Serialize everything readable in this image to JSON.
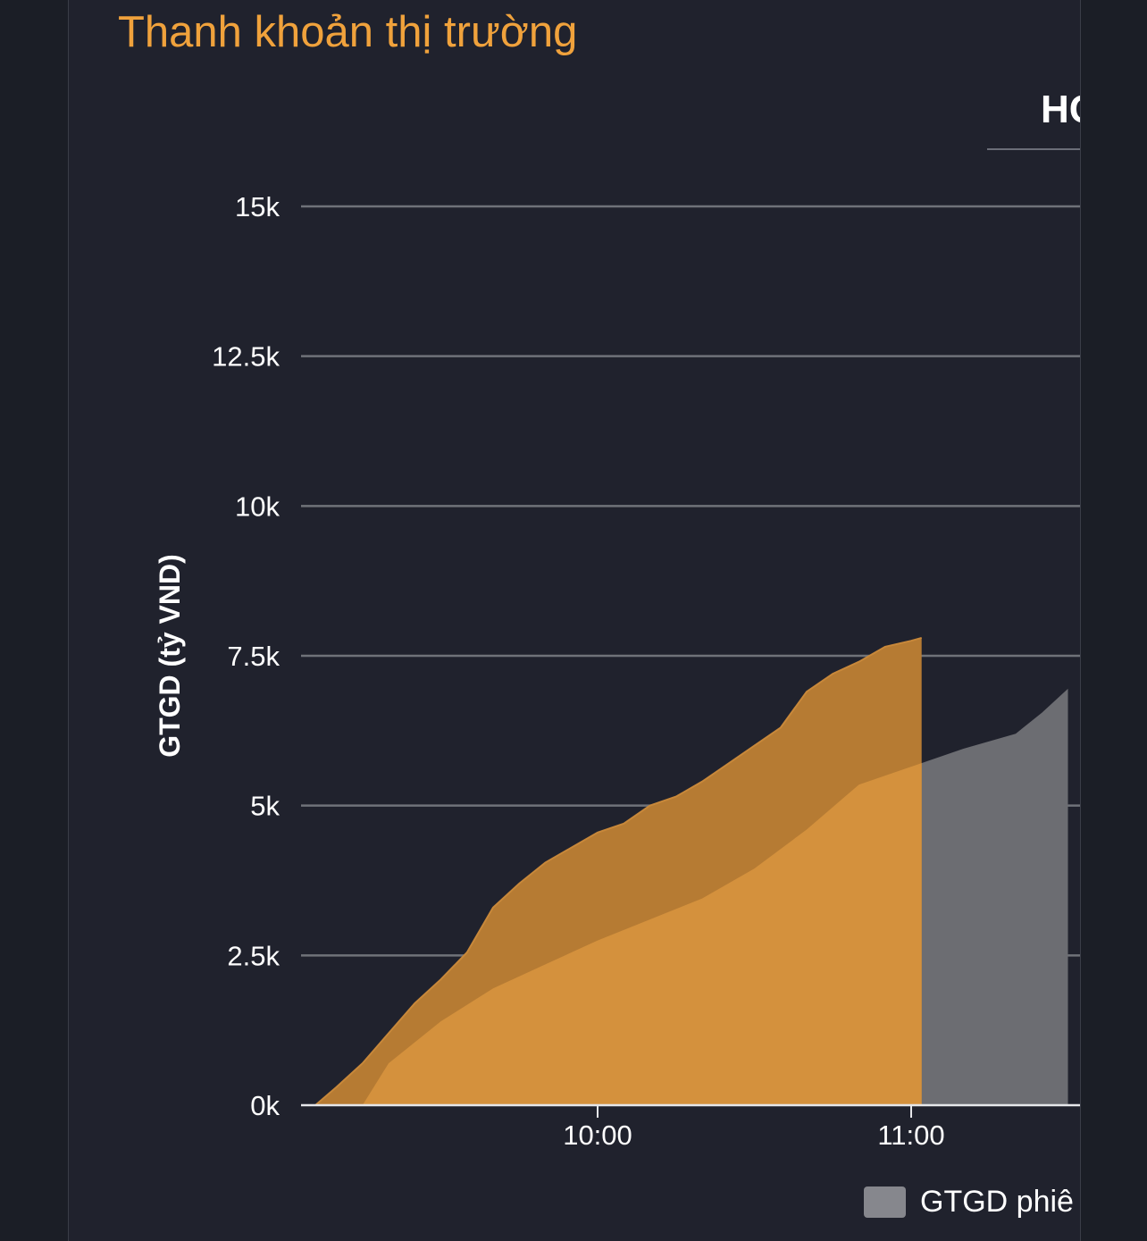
{
  "panel": {
    "title": "Thanh khoản thị trường",
    "tab_label": "HC"
  },
  "legend": {
    "label": "GTGD phiê"
  },
  "colors": {
    "accent": "#f0a23c",
    "panel_bg": "#20222d",
    "orange_fill": "#d4913d",
    "orange_dark_fill": "#b67b33",
    "gray_fill": "#6c6d72",
    "gridline": "#6f7279"
  },
  "chart_data": {
    "type": "area",
    "ylabel": "GTGD (tỷ VND)",
    "xlabel": "",
    "ylim": [
      0,
      15000
    ],
    "yticks": [
      0,
      2500,
      5000,
      7500,
      10000,
      12500,
      15000
    ],
    "ytick_labels": [
      "0k",
      "2.5k",
      "5k",
      "7.5k",
      "10k",
      "12.5k",
      "15k"
    ],
    "xticks": [
      "10:00",
      "11:00"
    ],
    "grid": true,
    "legend_position": "bottom-right",
    "series": [
      {
        "name": "GTGD phiê",
        "color": "#6c6d72",
        "x": [
          "09:15",
          "09:20",
          "09:30",
          "09:40",
          "09:50",
          "10:00",
          "10:10",
          "10:20",
          "10:30",
          "10:40",
          "10:50",
          "11:00",
          "11:10",
          "11:20",
          "11:25",
          "11:30"
        ],
        "values": [
          0,
          700,
          1400,
          1950,
          2350,
          2750,
          3100,
          3450,
          3950,
          4600,
          5350,
          5650,
          5950,
          6200,
          6550,
          6950
        ]
      },
      {
        "color": "#b67b33",
        "x": [
          "09:06",
          "09:10",
          "09:15",
          "09:20",
          "09:25",
          "09:30",
          "09:35",
          "09:40",
          "09:45",
          "09:50",
          "09:55",
          "10:00",
          "10:05",
          "10:10",
          "10:15",
          "10:20",
          "10:25",
          "10:30",
          "10:35",
          "10:40",
          "10:45",
          "10:50",
          "10:55",
          "11:00",
          "11:02"
        ],
        "values": [
          0,
          300,
          700,
          1200,
          1700,
          2100,
          2550,
          3300,
          3700,
          4050,
          4300,
          4550,
          4700,
          5000,
          5150,
          5400,
          5700,
          6000,
          6300,
          6900,
          7200,
          7400,
          7650,
          7750,
          7800
        ]
      }
    ]
  }
}
